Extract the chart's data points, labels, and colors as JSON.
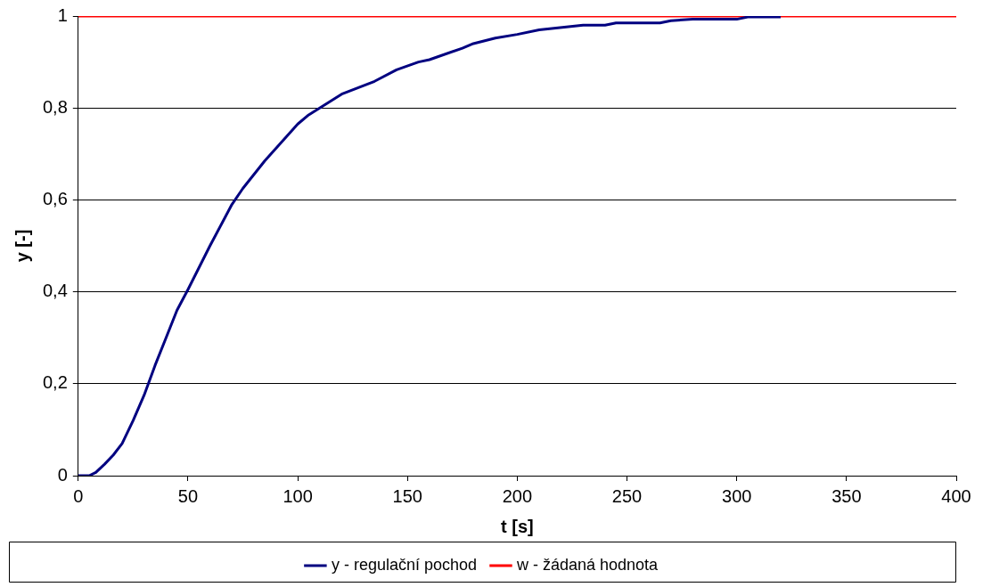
{
  "chart_data": {
    "type": "line",
    "xlabel": "t [s]",
    "ylabel": "y [-]",
    "series": [
      {
        "name": "y - regulační pochod",
        "color": "#000080",
        "x": [
          0,
          5,
          8,
          12,
          16,
          20,
          25,
          30,
          35,
          40,
          45,
          50,
          60,
          70,
          75,
          85,
          100,
          105,
          115,
          120,
          135,
          145,
          155,
          160,
          175,
          180,
          190,
          200,
          210,
          230,
          240,
          245,
          265,
          270,
          280,
          300,
          305,
          320
        ],
        "values": [
          0,
          0,
          0.007,
          0.025,
          0.045,
          0.07,
          0.12,
          0.175,
          0.24,
          0.3,
          0.36,
          0.405,
          0.5,
          0.59,
          0.625,
          0.685,
          0.765,
          0.785,
          0.815,
          0.83,
          0.858,
          0.883,
          0.9,
          0.905,
          0.93,
          0.94,
          0.952,
          0.96,
          0.97,
          0.98,
          0.98,
          0.985,
          0.985,
          0.99,
          0.993,
          0.993,
          0.998,
          0.998
        ]
      },
      {
        "name": "w - žádaná hodnota",
        "color": "#ff0000",
        "x": [
          0,
          400
        ],
        "values": [
          1,
          1
        ]
      }
    ],
    "xlim": [
      0,
      400
    ],
    "xticks": [
      0,
      50,
      100,
      150,
      200,
      250,
      300,
      350,
      400
    ],
    "ylim": [
      0,
      1
    ],
    "yticks": [
      0,
      {
        "value": 0.2,
        "label": "0,2"
      },
      {
        "value": 0.4,
        "label": "0,4"
      },
      {
        "value": 0.6,
        "label": "0,6"
      },
      {
        "value": 0.8,
        "label": "0,8"
      },
      1
    ],
    "grid": "y",
    "legend": "bottom",
    "marker": "none",
    "line_style": "solid"
  }
}
